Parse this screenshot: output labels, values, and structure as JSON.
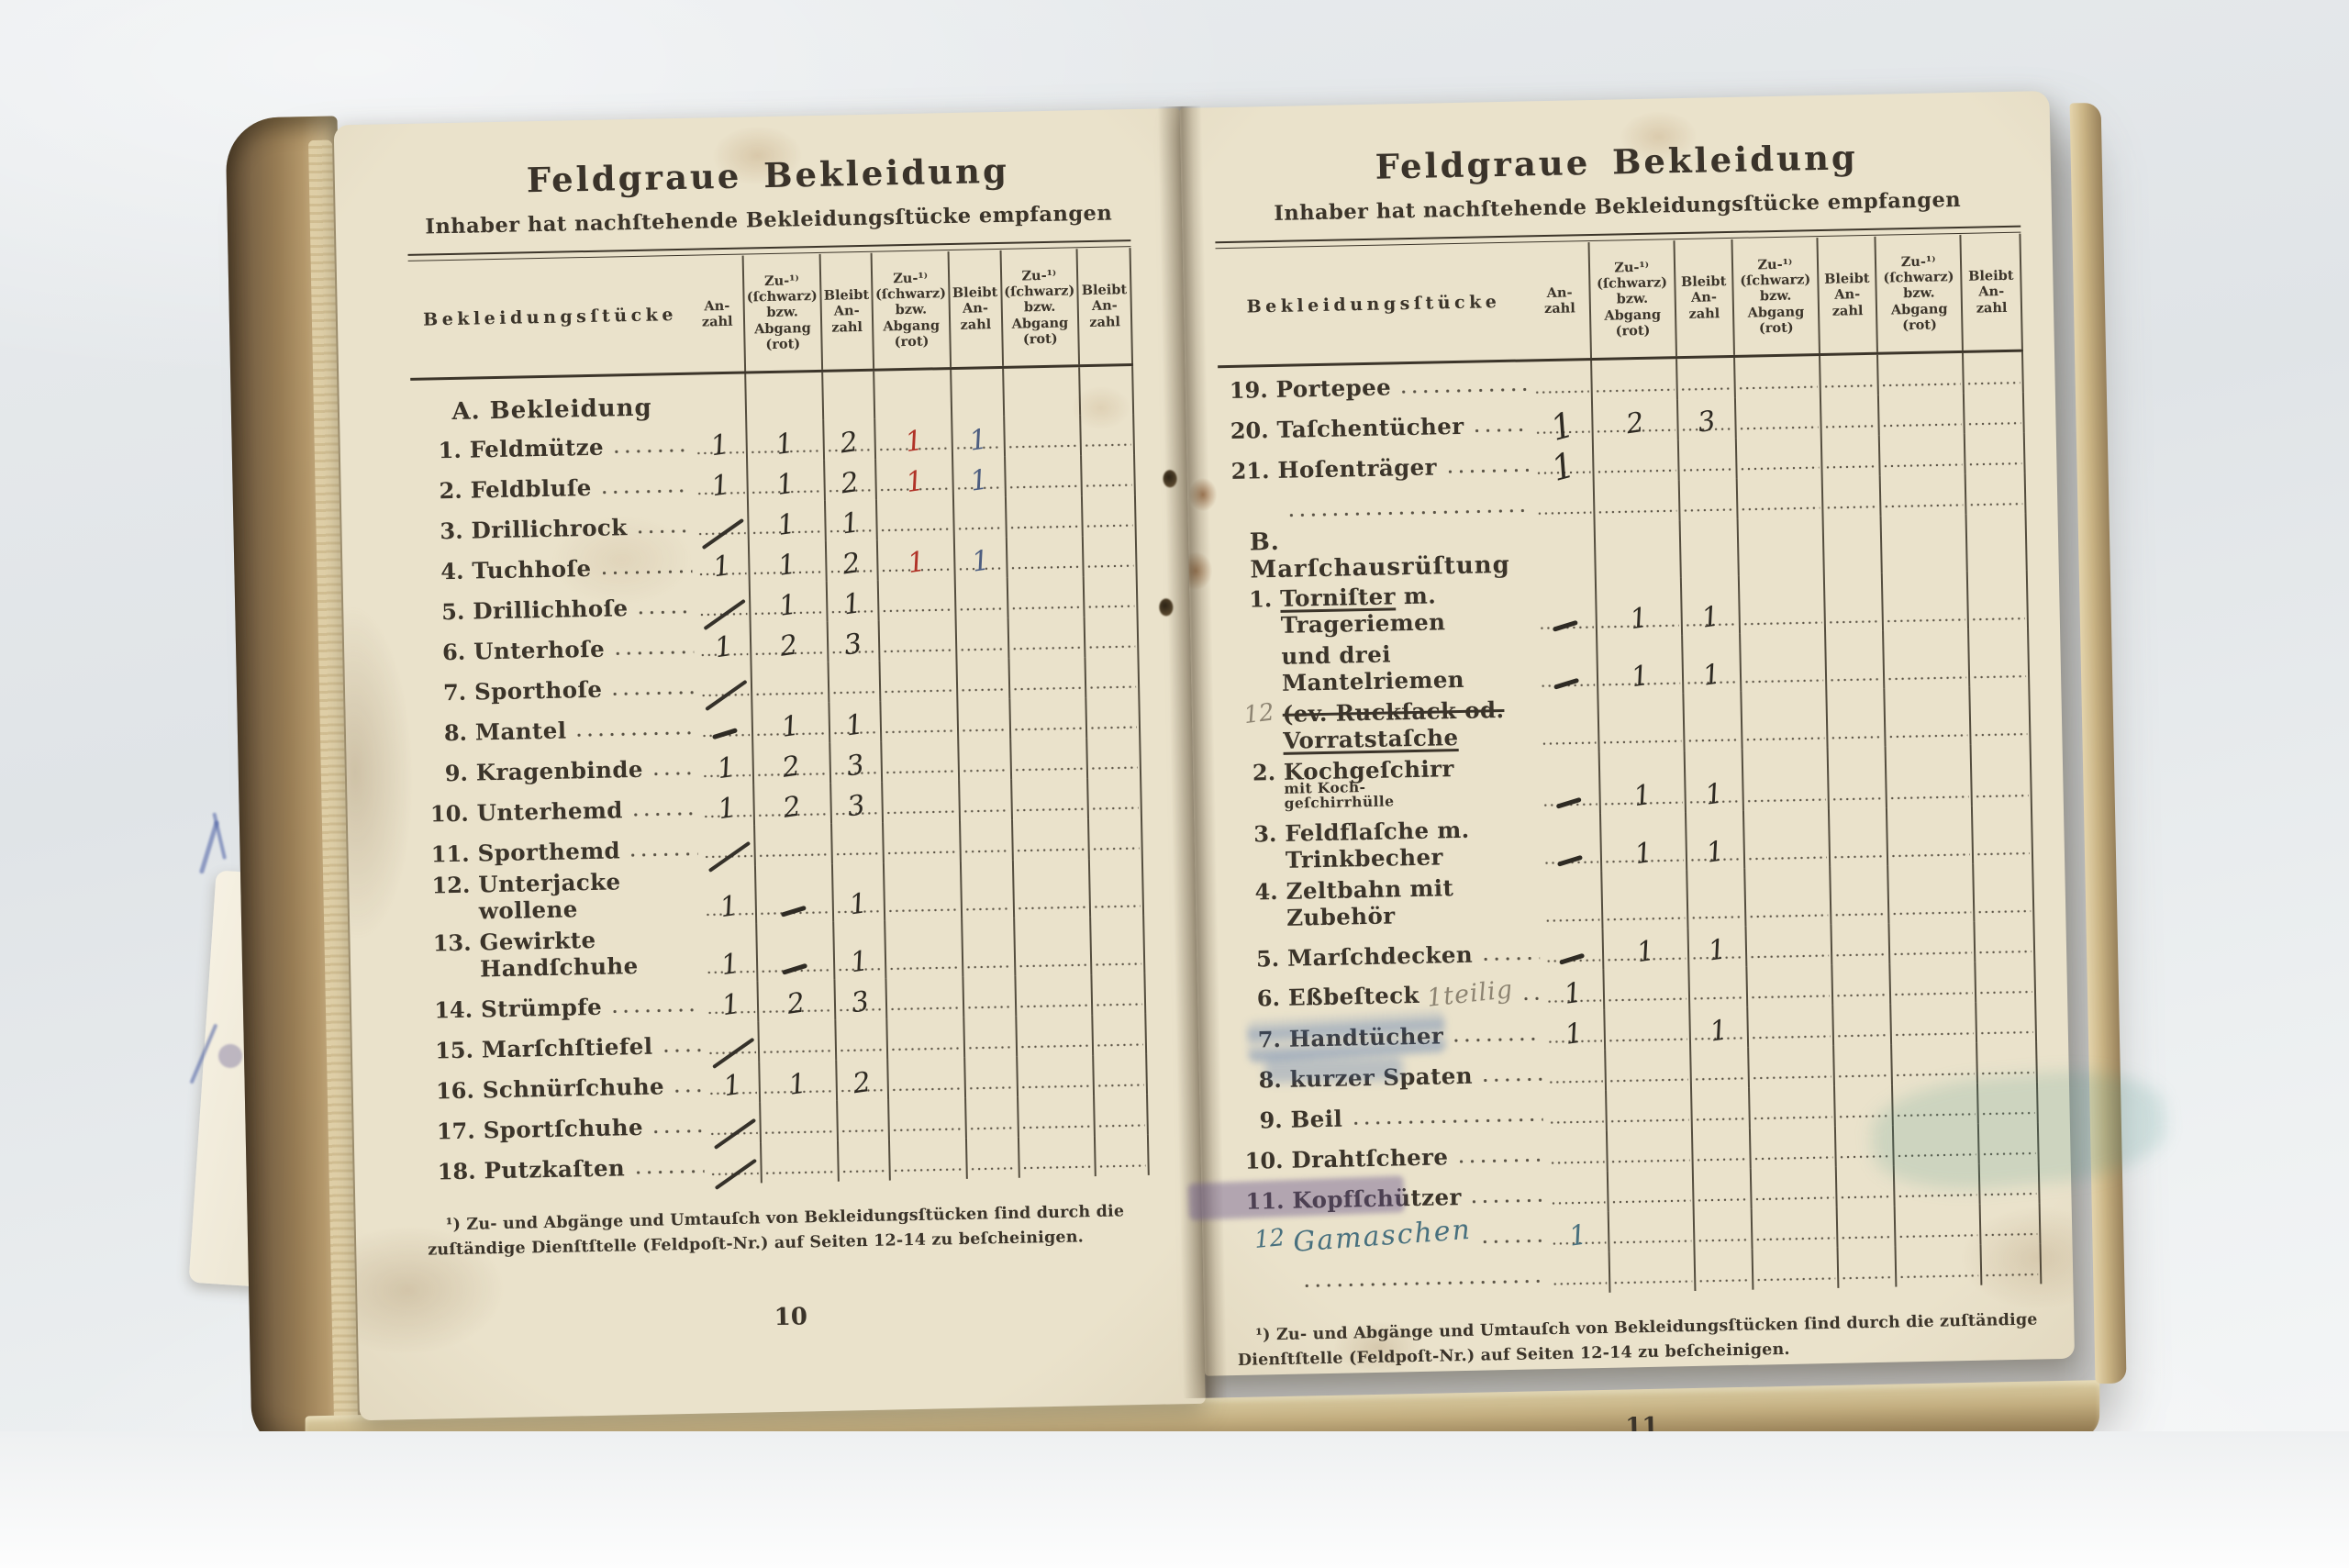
{
  "header": {
    "title": "Feldgraue Bekleidung",
    "subtitle": "Inhaber hat nachſtehende Bekleidungsſtücke empfangen",
    "item_column": "Bekleidungsſtücke",
    "value_columns": [
      "An-\nzahl",
      "Zu-¹⁾\n(ſchwarz)\nbzw.\nAbgang\n(rot)",
      "Bleibt\nAn-\nzahl",
      "Zu-¹⁾\n(ſchwarz)\nbzw.\nAbgang\n(rot)",
      "Bleibt\nAn-\nzahl",
      "Zu-¹⁾\n(ſchwarz)\nbzw.\nAbgang\n(rot)",
      "Bleibt\nAn-\nzahl"
    ]
  },
  "footnote": "¹) Zu- und Abgänge und Umtauſch von Bekleidungsſtücken ſind durch die zuſtändige Dienſtſtelle (Feldpoſt-Nr.) auf Seiten 12-14 zu beſcheinigen.",
  "ink_colors": {
    "black_ink": "#2e2a23",
    "red_ink": "#b03227",
    "blue_ink": "#4c5d80",
    "pencil": "#8d8472",
    "teal_ink": "#48707e"
  },
  "left_page": {
    "page_number": "10",
    "rows": [
      {
        "cls": "section",
        "num": "",
        "segs": [
          {
            "t": "A. Bekleidung"
          }
        ],
        "cells": [
          {},
          {},
          {},
          {},
          {},
          {},
          {}
        ]
      },
      {
        "num": "1.",
        "segs": [
          {
            "t": "Feldmütze"
          }
        ],
        "cells": [
          {
            "t": "1"
          },
          {
            "t": "1"
          },
          {
            "t": "2"
          },
          {
            "t": "1",
            "c": "red"
          },
          {
            "t": "1",
            "c": "blue"
          },
          {},
          {}
        ]
      },
      {
        "num": "2.",
        "segs": [
          {
            "t": "Feldbluſe"
          }
        ],
        "cells": [
          {
            "t": "1"
          },
          {
            "t": "1"
          },
          {
            "t": "2"
          },
          {
            "t": "1",
            "c": "red"
          },
          {
            "t": "1",
            "c": "blue"
          },
          {},
          {}
        ]
      },
      {
        "num": "3.",
        "segs": [
          {
            "t": "Drillichrock"
          }
        ],
        "cells": [
          {
            "c": "slash"
          },
          {
            "t": "1"
          },
          {
            "t": "1"
          },
          {},
          {},
          {},
          {}
        ]
      },
      {
        "num": "4.",
        "segs": [
          {
            "t": "Tuchhoſe"
          }
        ],
        "cells": [
          {
            "t": "1"
          },
          {
            "t": "1"
          },
          {
            "t": "2"
          },
          {
            "t": "1",
            "c": "red"
          },
          {
            "t": "1",
            "c": "blue"
          },
          {},
          {}
        ]
      },
      {
        "num": "5.",
        "segs": [
          {
            "t": "Drillichhoſe"
          }
        ],
        "cells": [
          {
            "c": "slash"
          },
          {
            "t": "1"
          },
          {
            "t": "1"
          },
          {},
          {},
          {},
          {}
        ]
      },
      {
        "num": "6.",
        "segs": [
          {
            "t": "Unterhoſe"
          }
        ],
        "cells": [
          {
            "t": "1"
          },
          {
            "t": "2"
          },
          {
            "t": "3"
          },
          {},
          {},
          {},
          {}
        ]
      },
      {
        "num": "7.",
        "segs": [
          {
            "t": "Sporthoſe"
          }
        ],
        "cells": [
          {
            "c": "slash"
          },
          {},
          {},
          {},
          {},
          {},
          {}
        ]
      },
      {
        "num": "8.",
        "segs": [
          {
            "t": "Mantel"
          }
        ],
        "cells": [
          {
            "c": "dash"
          },
          {
            "t": "1"
          },
          {
            "t": "1"
          },
          {},
          {},
          {},
          {}
        ]
      },
      {
        "num": "9.",
        "segs": [
          {
            "t": "Kragenbinde"
          }
        ],
        "cells": [
          {
            "t": "1"
          },
          {
            "t": "2"
          },
          {
            "t": "3"
          },
          {},
          {},
          {},
          {}
        ]
      },
      {
        "num": "10.",
        "segs": [
          {
            "t": "Unterhemd"
          }
        ],
        "cells": [
          {
            "t": "1"
          },
          {
            "t": "2"
          },
          {
            "t": "3"
          },
          {},
          {},
          {},
          {}
        ]
      },
      {
        "num": "11.",
        "segs": [
          {
            "t": "Sporthemd"
          }
        ],
        "cells": [
          {
            "c": "slash"
          },
          {},
          {},
          {},
          {},
          {},
          {}
        ]
      },
      {
        "num": "12.",
        "segs": [
          {
            "t": "Unterjacke wollene"
          }
        ],
        "cells": [
          {
            "t": "1"
          },
          {
            "c": "dash"
          },
          {
            "t": "1"
          },
          {},
          {},
          {},
          {}
        ]
      },
      {
        "num": "13.",
        "segs": [
          {
            "t": "Gewirkte Handſchuhe"
          }
        ],
        "cells": [
          {
            "t": "1"
          },
          {
            "c": "dash"
          },
          {
            "t": "1"
          },
          {},
          {},
          {},
          {}
        ]
      },
      {
        "num": "14.",
        "segs": [
          {
            "t": "Strümpfe"
          }
        ],
        "cells": [
          {
            "t": "1"
          },
          {
            "t": "2"
          },
          {
            "t": "3"
          },
          {},
          {},
          {},
          {}
        ]
      },
      {
        "num": "15.",
        "segs": [
          {
            "t": "Marſchſtiefel"
          }
        ],
        "cells": [
          {
            "c": "slash"
          },
          {},
          {},
          {},
          {},
          {},
          {}
        ]
      },
      {
        "num": "16.",
        "segs": [
          {
            "t": "Schnürſchuhe"
          }
        ],
        "cells": [
          {
            "t": "1"
          },
          {
            "t": "1"
          },
          {
            "t": "2"
          },
          {},
          {},
          {},
          {}
        ]
      },
      {
        "num": "17.",
        "segs": [
          {
            "t": "Sportſchuhe"
          }
        ],
        "cells": [
          {
            "c": "slash"
          },
          {},
          {},
          {},
          {},
          {},
          {}
        ]
      },
      {
        "num": "18.",
        "segs": [
          {
            "t": "Putzkaſten"
          }
        ],
        "cells": [
          {
            "c": "slash"
          },
          {},
          {},
          {},
          {},
          {},
          {}
        ]
      }
    ]
  },
  "right_page": {
    "page_number": "11",
    "rows": [
      {
        "num": "19.",
        "segs": [
          {
            "t": "Portepee"
          }
        ],
        "cells": [
          {},
          {},
          {},
          {},
          {},
          {},
          {}
        ]
      },
      {
        "num": "20.",
        "segs": [
          {
            "t": "Taſchentücher"
          }
        ],
        "cells": [
          {
            "t": "1",
            "c": "tall"
          },
          {
            "t": "2"
          },
          {
            "t": "3"
          },
          {},
          {},
          {},
          {}
        ]
      },
      {
        "num": "21.",
        "segs": [
          {
            "t": "Hoſenträger"
          }
        ],
        "cells": [
          {
            "t": "1",
            "c": "tall"
          },
          {},
          {},
          {},
          {},
          {},
          {}
        ]
      },
      {
        "cls": "blank",
        "num": "",
        "segs": [],
        "cells": [
          {},
          {},
          {},
          {},
          {},
          {},
          {}
        ]
      },
      {
        "cls": "section",
        "num": "",
        "segs": [
          {
            "t": "B. Marſchausrüſtung"
          }
        ],
        "cells": [
          {},
          {},
          {},
          {},
          {},
          {},
          {}
        ]
      },
      {
        "cls": "tight nolead",
        "num": "1.",
        "segs": [
          {
            "t": "Torniſter",
            "c": "underline"
          },
          {
            "t": " m. Trageriemen"
          }
        ],
        "cells": [
          {
            "c": "dash"
          },
          {
            "t": "1"
          },
          {
            "t": "1"
          },
          {},
          {},
          {},
          {}
        ]
      },
      {
        "cls": "tight nolead",
        "num": "",
        "segs": [
          {
            "t": "und drei Mantelriemen"
          }
        ],
        "cells": [
          {
            "c": "dash"
          },
          {
            "t": "1"
          },
          {
            "t": "1"
          },
          {},
          {},
          {},
          {}
        ]
      },
      {
        "cls": "tight",
        "num": "12",
        "numc": "pencilnum",
        "segs": [
          {
            "t": "(ev. Ruckſack od. ",
            "c": "strike"
          },
          {
            "t": "Vorratstaſche",
            "c": "underline"
          }
        ],
        "cells": [
          {},
          {},
          {},
          {},
          {},
          {},
          {}
        ]
      },
      {
        "num": "2.",
        "segs": [
          {
            "t": "Kochgeſchirr "
          },
          {
            "t": "mit Koch-\ngeſchirrhülle",
            "c": "small2"
          }
        ],
        "cells": [
          {
            "c": "dash"
          },
          {
            "t": "1"
          },
          {
            "t": "1"
          },
          {},
          {},
          {},
          {}
        ]
      },
      {
        "num": "3.",
        "segs": [
          {
            "t": "Feldflaſche m. Trinkbecher"
          }
        ],
        "cells": [
          {
            "c": "dash"
          },
          {
            "t": "1"
          },
          {
            "t": "1"
          },
          {},
          {},
          {},
          {}
        ]
      },
      {
        "num": "4.",
        "segs": [
          {
            "t": "Zeltbahn mit Zubehör"
          }
        ],
        "cells": [
          {},
          {},
          {},
          {},
          {},
          {},
          {}
        ]
      },
      {
        "num": "5.",
        "segs": [
          {
            "t": "Marſchdecken"
          }
        ],
        "cells": [
          {
            "c": "dash"
          },
          {
            "t": "1"
          },
          {
            "t": "1"
          },
          {},
          {},
          {},
          {}
        ]
      },
      {
        "num": "6.",
        "segs": [
          {
            "t": "Eßbeſteck"
          },
          {
            "t": "1teilig",
            "c": "pencilscript"
          }
        ],
        "cells": [
          {
            "t": "1"
          },
          {},
          {},
          {},
          {},
          {},
          {}
        ]
      },
      {
        "num": "7.",
        "segs": [
          {
            "t": "Handtücher"
          }
        ],
        "cells": [
          {
            "t": "1"
          },
          {},
          {
            "t": "1"
          },
          {},
          {},
          {},
          {}
        ]
      },
      {
        "num": "8.",
        "segs": [
          {
            "t": "kurzer Spaten"
          }
        ],
        "cells": [
          {},
          {},
          {},
          {},
          {},
          {},
          {}
        ]
      },
      {
        "num": "9.",
        "segs": [
          {
            "t": "Beil"
          }
        ],
        "cells": [
          {},
          {},
          {},
          {},
          {},
          {},
          {}
        ]
      },
      {
        "num": "10.",
        "segs": [
          {
            "t": "Drahtſchere"
          }
        ],
        "cells": [
          {},
          {},
          {},
          {},
          {},
          {},
          {}
        ]
      },
      {
        "num": "11.",
        "segs": [
          {
            "t": "Kopfſchützer"
          }
        ],
        "cells": [
          {},
          {},
          {},
          {},
          {},
          {},
          {}
        ]
      },
      {
        "cls": "script",
        "num": "12",
        "segs": [
          {
            "t": "Gamaschen"
          }
        ],
        "cells": [
          {
            "t": "1",
            "c": "teal"
          },
          {},
          {},
          {},
          {},
          {},
          {}
        ]
      },
      {
        "cls": "blank",
        "num": "",
        "segs": [],
        "cells": [
          {},
          {},
          {},
          {},
          {},
          {},
          {}
        ]
      }
    ]
  }
}
